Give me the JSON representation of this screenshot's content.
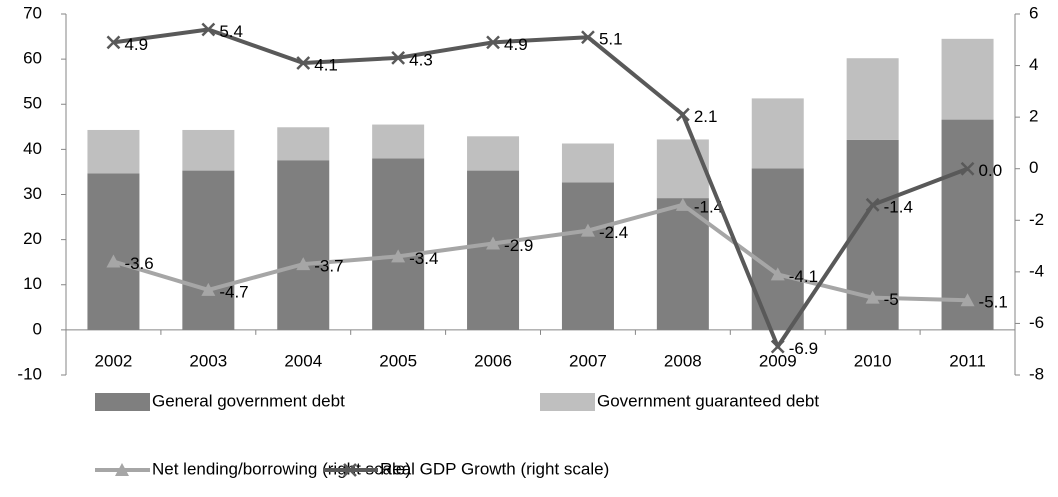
{
  "chart_data": {
    "type": "bar",
    "categories": [
      "2002",
      "2003",
      "2004",
      "2005",
      "2006",
      "2007",
      "2008",
      "2009",
      "2010",
      "2011"
    ],
    "series": [
      {
        "name": "General government debt",
        "type": "bar",
        "color": "#7f7f7f",
        "values": [
          34.7,
          35.3,
          37.6,
          38.0,
          35.3,
          32.7,
          29.2,
          35.8,
          42.1,
          46.6
        ]
      },
      {
        "name": "Government guaranteed debt",
        "type": "bar",
        "color": "#bfbfbf",
        "values": [
          9.6,
          9.0,
          7.3,
          7.5,
          7.6,
          8.6,
          13.0,
          15.5,
          18.1,
          17.9
        ]
      },
      {
        "name": "Net lending/borrowing (right scale)",
        "type": "line",
        "marker": "triangle",
        "axis": "y2",
        "color": "#a6a6a6",
        "values": [
          -3.6,
          -4.7,
          -3.7,
          -3.4,
          -2.9,
          -2.4,
          -1.4,
          -4.1,
          -5.0,
          -5.1
        ]
      },
      {
        "name": "Real GDP Growth (right scale)",
        "type": "line",
        "marker": "x",
        "axis": "y2",
        "color": "#595959",
        "values": [
          4.9,
          5.4,
          4.1,
          4.3,
          4.9,
          5.1,
          2.1,
          -6.9,
          -1.4,
          0.0
        ],
        "value_labels": [
          "4.9",
          "5.4",
          "4.1",
          "4.3",
          "4.9",
          "5.1",
          "2.1",
          "-6.9",
          "-1.4",
          "0.0"
        ]
      }
    ],
    "stacked": true,
    "ylim": [
      -10,
      70
    ],
    "yticks": [
      70,
      60,
      50,
      40,
      30,
      20,
      10,
      0,
      -10
    ],
    "y2lim": [
      -8,
      6
    ],
    "y2ticks": [
      6,
      4,
      2,
      0,
      -2,
      -4,
      -6,
      -8
    ],
    "legend": "bottom"
  }
}
